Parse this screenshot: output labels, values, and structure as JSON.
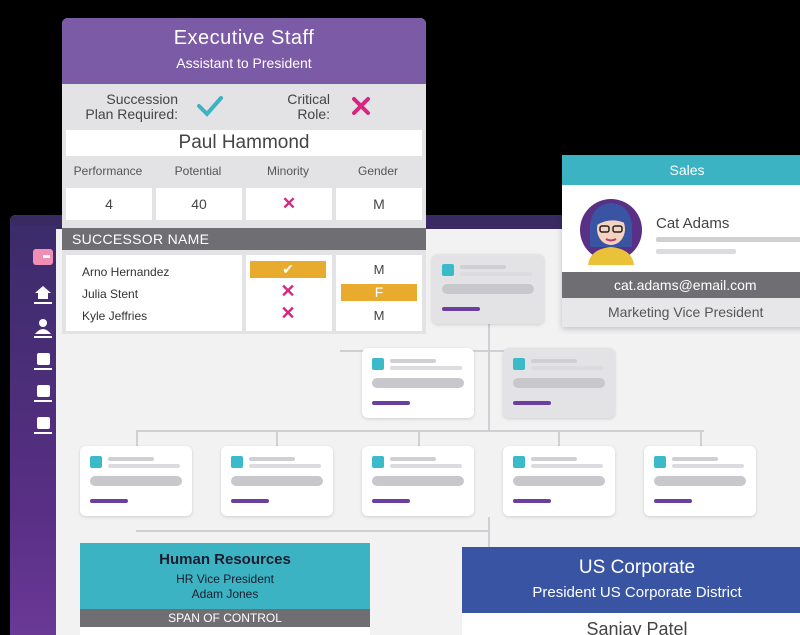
{
  "exec_card": {
    "title": "Executive Staff",
    "subtitle": "Assistant to President",
    "succession_label_1": "Succession",
    "succession_label_2": "Plan Required:",
    "critical_label_1": "Critical",
    "critical_label_2": "Role:",
    "succession_icon": "check-icon",
    "critical_icon": "x-icon",
    "name": "Paul Hammond",
    "metrics": [
      {
        "header": "Performance",
        "value": "4"
      },
      {
        "header": "Potential",
        "value": "40"
      },
      {
        "header": "Minority",
        "value": "✕"
      },
      {
        "header": "Gender",
        "value": "M"
      }
    ]
  },
  "successors": {
    "header": "SUCCESSOR NAME",
    "rows": [
      {
        "name": "Arno Hernandez",
        "status": "check",
        "gender": "M"
      },
      {
        "name": "Julia Stent",
        "status": "x",
        "gender": "F"
      },
      {
        "name": "Kyle Jeffries",
        "status": "x",
        "gender": "M"
      }
    ]
  },
  "sales_card": {
    "dept": "Sales",
    "name": "Cat Adams",
    "email": "cat.adams@email.com",
    "role": "Marketing Vice President"
  },
  "hr_card": {
    "title": "Human Resources",
    "role": "HR Vice President",
    "name": "Adam Jones",
    "span": "SPAN OF CONTROL"
  },
  "us_card": {
    "title": "US Corporate",
    "role": "President US Corporate District",
    "name": "Sanjay Patel"
  },
  "sidebar": {
    "items": [
      "card-icon",
      "home-icon",
      "person-icon",
      "doc-icon",
      "doc-icon",
      "doc-icon"
    ]
  },
  "colors": {
    "purple": "#7b5aa6",
    "teal": "#3bb3c3",
    "blue": "#3a54a4",
    "magenta": "#d6267f",
    "amber": "#e9ab2e"
  }
}
